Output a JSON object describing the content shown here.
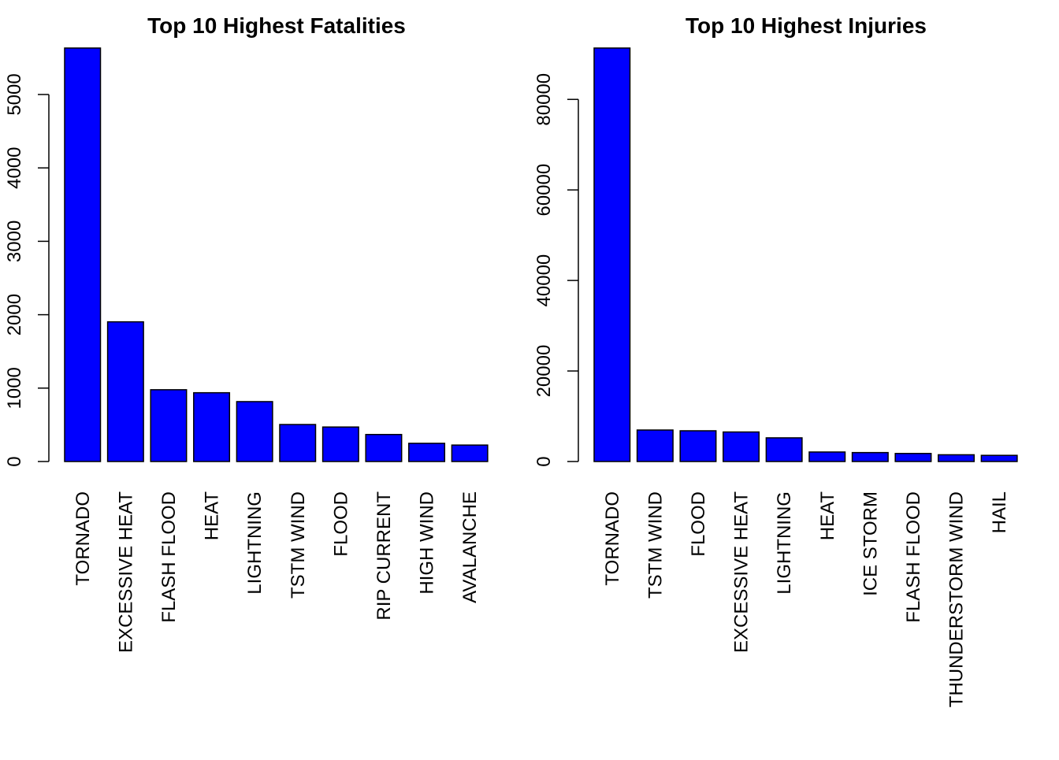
{
  "colors": {
    "bar_fill": "#0000FF",
    "bar_stroke": "#000000",
    "axis": "#000000"
  },
  "chart_data": [
    {
      "type": "bar",
      "title": "Top 10 Highest Fatalities",
      "xlabel": "",
      "ylabel": "",
      "ylim": [
        0,
        5633
      ],
      "yticks": [
        0,
        1000,
        2000,
        3000,
        4000,
        5000
      ],
      "grid": false,
      "categories": [
        "TORNADO",
        "EXCESSIVE HEAT",
        "FLASH FLOOD",
        "HEAT",
        "LIGHTNING",
        "TSTM WIND",
        "FLOOD",
        "RIP CURRENT",
        "HIGH WIND",
        "AVALANCHE"
      ],
      "values": [
        5633,
        1903,
        978,
        937,
        816,
        504,
        470,
        368,
        248,
        224
      ]
    },
    {
      "type": "bar",
      "title": "Top 10 Highest Injuries",
      "xlabel": "",
      "ylabel": "",
      "ylim": [
        0,
        91346
      ],
      "yticks": [
        0,
        20000,
        40000,
        60000,
        80000
      ],
      "grid": false,
      "categories": [
        "TORNADO",
        "TSTM WIND",
        "FLOOD",
        "EXCESSIVE HEAT",
        "LIGHTNING",
        "HEAT",
        "ICE STORM",
        "FLASH FLOOD",
        "THUNDERSTORM WIND",
        "HAIL"
      ],
      "values": [
        91346,
        6957,
        6789,
        6525,
        5230,
        2100,
        1975,
        1777,
        1488,
        1361
      ]
    }
  ]
}
